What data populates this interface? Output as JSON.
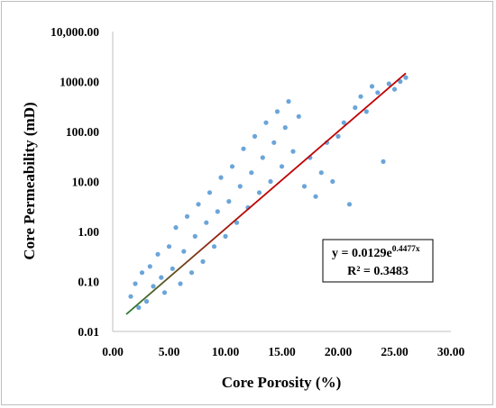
{
  "chart_data": {
    "type": "scatter",
    "title": "",
    "xlabel": "Core Porosity (%)",
    "ylabel": "Core Permeability (mD)",
    "xlim": [
      0,
      30
    ],
    "ylim": [
      0.01,
      10000
    ],
    "yscale": "log",
    "x_ticks": [
      "0.00",
      "5.00",
      "10.00",
      "15.00",
      "20.00",
      "25.00",
      "30.00"
    ],
    "y_ticks": [
      "0.01",
      "0.10",
      "1.00",
      "10.00",
      "100.00",
      "1000.00",
      "10,000.00"
    ],
    "grid": false,
    "legend": "none",
    "point_color": "#5b9bd5",
    "trendline": {
      "type": "exponential",
      "a": 0.0129,
      "b": 0.4477,
      "x_range": [
        1.2,
        26.0
      ],
      "colors": [
        "#2e7d32",
        "#c00000"
      ]
    },
    "annotation": {
      "equation_prefix": "y = 0.0129e",
      "equation_exponent": "0.4477x",
      "r2": "R² = 0.3483"
    },
    "series": [
      {
        "points": [
          [
            1.6,
            0.05
          ],
          [
            2.0,
            0.09
          ],
          [
            2.3,
            0.03
          ],
          [
            2.6,
            0.15
          ],
          [
            3.0,
            0.04
          ],
          [
            3.3,
            0.2
          ],
          [
            3.6,
            0.08
          ],
          [
            4.0,
            0.35
          ],
          [
            4.3,
            0.12
          ],
          [
            4.6,
            0.06
          ],
          [
            5.0,
            0.5
          ],
          [
            5.3,
            0.18
          ],
          [
            5.6,
            1.2
          ],
          [
            6.0,
            0.09
          ],
          [
            6.3,
            0.4
          ],
          [
            6.6,
            2.0
          ],
          [
            7.0,
            0.15
          ],
          [
            7.3,
            0.8
          ],
          [
            7.6,
            3.5
          ],
          [
            8.0,
            0.25
          ],
          [
            8.3,
            1.5
          ],
          [
            8.6,
            6.0
          ],
          [
            9.0,
            0.5
          ],
          [
            9.3,
            2.5
          ],
          [
            9.6,
            12.0
          ],
          [
            10.0,
            0.8
          ],
          [
            10.3,
            4.0
          ],
          [
            10.6,
            20.0
          ],
          [
            11.0,
            1.5
          ],
          [
            11.3,
            8.0
          ],
          [
            11.6,
            45.0
          ],
          [
            12.0,
            3.0
          ],
          [
            12.3,
            15.0
          ],
          [
            12.6,
            80.0
          ],
          [
            13.0,
            6.0
          ],
          [
            13.3,
            30.0
          ],
          [
            13.6,
            150.0
          ],
          [
            14.0,
            10.0
          ],
          [
            14.3,
            60.0
          ],
          [
            14.6,
            250.0
          ],
          [
            15.0,
            20.0
          ],
          [
            15.3,
            120.0
          ],
          [
            15.6,
            400.0
          ],
          [
            16.0,
            40.0
          ],
          [
            16.5,
            200.0
          ],
          [
            17.0,
            8.0
          ],
          [
            17.5,
            30.0
          ],
          [
            18.0,
            5.0
          ],
          [
            18.5,
            15.0
          ],
          [
            19.0,
            60.0
          ],
          [
            19.5,
            10.0
          ],
          [
            20.0,
            80.0
          ],
          [
            20.5,
            150.0
          ],
          [
            21.0,
            3.5
          ],
          [
            21.5,
            300.0
          ],
          [
            22.0,
            500.0
          ],
          [
            22.5,
            250.0
          ],
          [
            23.0,
            800.0
          ],
          [
            23.5,
            600.0
          ],
          [
            24.0,
            25.0
          ],
          [
            24.5,
            900.0
          ],
          [
            25.0,
            700.0
          ],
          [
            25.5,
            1000.0
          ],
          [
            26.0,
            1200.0
          ]
        ]
      }
    ]
  }
}
